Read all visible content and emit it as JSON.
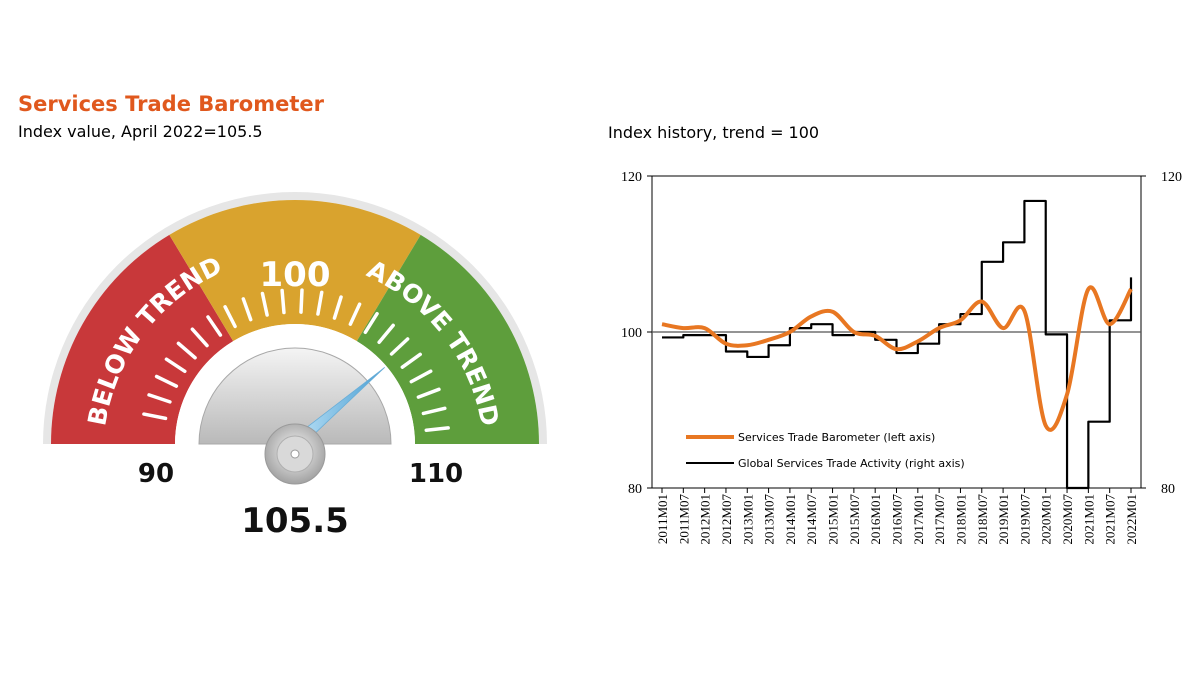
{
  "left_panel": {
    "title": "Services Trade Barometer",
    "subtitle": "Index value, April 2022=105.5"
  },
  "right_panel": {
    "title": "Index history, trend = 100"
  },
  "colors": {
    "title_orange": "#e0581d",
    "below_trend_red": "#c8383a",
    "trend_yellow": "#d9a32e",
    "above_trend_green": "#5e9e3c",
    "barometer_line": "#e87722",
    "activity_line": "#000000"
  },
  "chart_data": [
    {
      "type": "gauge",
      "value": 105.5,
      "value_label": "105.5",
      "min": 90,
      "max": 110,
      "min_label": "90",
      "max_label": "110",
      "bands": [
        {
          "label": "BELOW TREND",
          "color": "#c8383a"
        },
        {
          "label": "100",
          "color": "#d9a32e"
        },
        {
          "label": "ABOVE TREND",
          "color": "#5e9e3c"
        }
      ]
    },
    {
      "type": "line",
      "x_ticks": [
        "2011M01",
        "2011M07",
        "2012M01",
        "2012M07",
        "2013M01",
        "2013M07",
        "2014M01",
        "2014M07",
        "2015M01",
        "2015M07",
        "2016M01",
        "2016M07",
        "2017M01",
        "2017M07",
        "2018M01",
        "2018M07",
        "2019M01",
        "2019M07",
        "2020M01",
        "2020M07",
        "2021M01",
        "2021M07",
        "2022M01"
      ],
      "y_left": {
        "ticks": [
          "80",
          "100",
          "120"
        ],
        "range": [
          80,
          120
        ]
      },
      "y_right": {
        "ticks": [
          "80",
          "120"
        ],
        "range": [
          80,
          120
        ]
      },
      "reference_line": 100,
      "legend_position": "bottom-left",
      "series": [
        {
          "name": "Services Trade Barometer (left axis)",
          "axis": "left",
          "color": "#e87722",
          "points": [
            [
              "2011M01",
              101.0
            ],
            [
              "2011M07",
              100.5
            ],
            [
              "2012M01",
              100.5
            ],
            [
              "2012M07",
              98.5
            ],
            [
              "2013M01",
              98.3
            ],
            [
              "2013M07",
              99.0
            ],
            [
              "2014M01",
              100.0
            ],
            [
              "2014M07",
              102.0
            ],
            [
              "2015M01",
              102.6
            ],
            [
              "2015M07",
              100.0
            ],
            [
              "2016M01",
              99.5
            ],
            [
              "2016M07",
              97.8
            ],
            [
              "2017M01",
              98.8
            ],
            [
              "2017M07",
              100.5
            ],
            [
              "2018M01",
              101.5
            ],
            [
              "2018M07",
              103.9
            ],
            [
              "2019M01",
              100.5
            ],
            [
              "2019M07",
              102.7
            ],
            [
              "2020M01",
              88.0
            ],
            [
              "2020M07",
              92.0
            ],
            [
              "2021M01",
              105.5
            ],
            [
              "2021M07",
              101.0
            ],
            [
              "2022M01",
              105.5
            ]
          ]
        },
        {
          "name": "Global Services Trade Activity (right axis)",
          "axis": "right",
          "color": "#000000",
          "points": [
            [
              "2011M01",
              99.3
            ],
            [
              "2011M07",
              99.6
            ],
            [
              "2012M01",
              99.6
            ],
            [
              "2012M07",
              97.5
            ],
            [
              "2013M01",
              96.8
            ],
            [
              "2013M07",
              98.3
            ],
            [
              "2014M01",
              100.5
            ],
            [
              "2014M07",
              101.0
            ],
            [
              "2015M01",
              99.6
            ],
            [
              "2015M07",
              100.0
            ],
            [
              "2016M01",
              99.0
            ],
            [
              "2016M07",
              97.3
            ],
            [
              "2017M01",
              98.5
            ],
            [
              "2017M07",
              101.0
            ],
            [
              "2018M01",
              102.3
            ],
            [
              "2018M07",
              109.0
            ],
            [
              "2019M01",
              111.5
            ],
            [
              "2019M07",
              116.8
            ],
            [
              "2020M01",
              99.7
            ],
            [
              "2020M07",
              80.0
            ],
            [
              "2021M01",
              88.5
            ],
            [
              "2021M07",
              101.5
            ],
            [
              "2022M01",
              107.0
            ]
          ]
        }
      ]
    }
  ]
}
